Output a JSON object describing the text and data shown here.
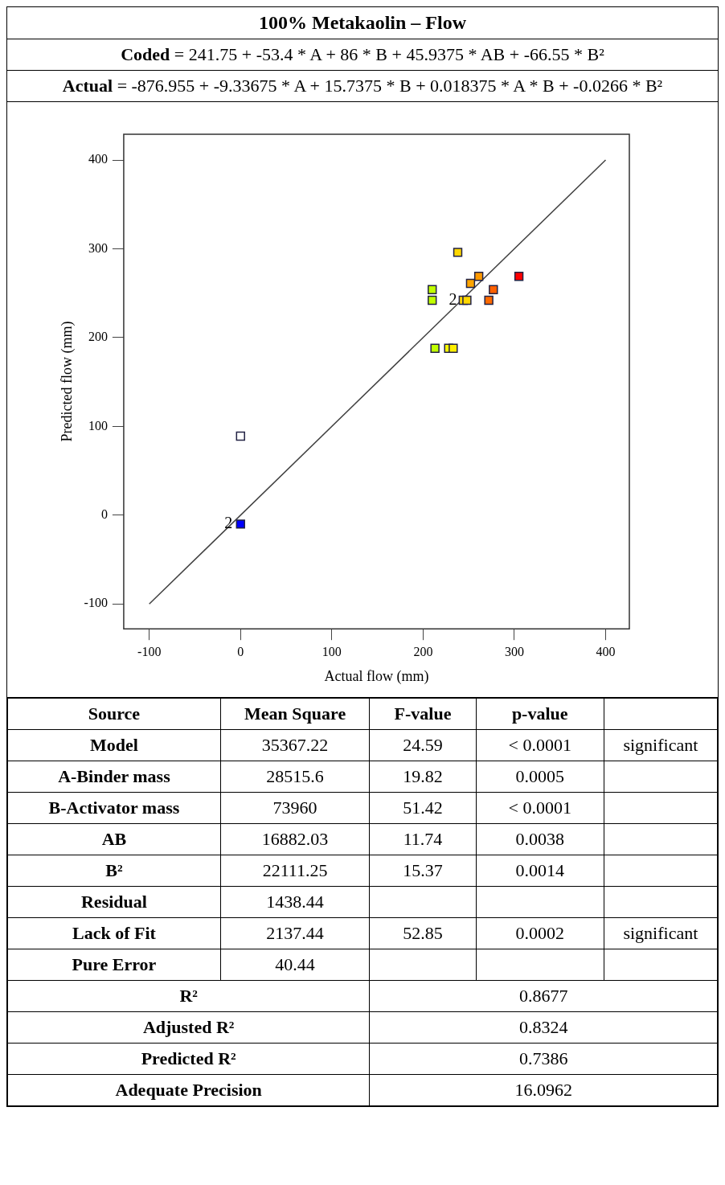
{
  "chart_data": {
    "type": "scatter",
    "title": "100% Metakaolin – Flow",
    "subtitle": "Coded = 241.75 + -53.4 * A + 86 * B + 45.9375 * AB + -66.55 * B²",
    "xlabel": "Actual flow (mm)",
    "ylabel": "Predicted flow (mm)",
    "xlim": [
      -128,
      426
    ],
    "ylim": [
      -128,
      429
    ],
    "xticks": [
      -100,
      0,
      100,
      200,
      300,
      400
    ],
    "yticks": [
      -100,
      0,
      100,
      200,
      300,
      400
    ],
    "grid": false,
    "legend": false,
    "marker": "square",
    "series": [
      {
        "x": [
          0,
          0,
          238,
          261,
          252,
          210,
          210,
          244,
          248,
          277,
          272,
          305,
          213,
          228,
          233
        ],
        "values": [
          89,
          -10,
          296,
          269,
          261,
          254,
          242,
          242,
          242,
          254,
          242,
          269,
          188,
          188,
          188
        ],
        "color": "#ff9900",
        "colors": [
          "#ffffff",
          "#0000ff",
          "#ffd700",
          "#ff9900",
          "#ffa500",
          "#c0ff00",
          "#c0ff00",
          "#ffd700",
          "#ffd700",
          "#ff6000",
          "#ff6a00",
          "#ff0000",
          "#c0ff00",
          "#ffff00",
          "#ffee00"
        ]
      },
      {
        "type": "line",
        "x": [
          -100,
          400
        ],
        "values": [
          -100,
          400
        ],
        "color": "#404040",
        "marker": "none"
      }
    ],
    "annotations": [
      "Actual = -876.955 + -9.33675 * A + 15.7375 * B + 0.018375 * A * B + -0.0266 * B²",
      "Source",
      "Mean Square",
      "F-value",
      "p-value",
      "Model",
      "35367.22",
      "24.59",
      "< 0.0001",
      "significant",
      "A-Binder mass",
      "28515.6",
      "19.82",
      "0.0005",
      "B-Activator mass",
      "73960",
      "51.42",
      "< 0.0001",
      "AB",
      "16882.03",
      "11.74",
      "0.0038",
      "B²",
      "22111.25",
      "15.37",
      "0.0014",
      "Residual",
      "1438.44",
      "Lack of Fit",
      "2137.44",
      "52.85",
      "0.0002",
      "significant",
      "Pure Error",
      "40.44",
      "R²",
      "0.8677",
      "Adjusted R²",
      "0.8324",
      "Predicted R²",
      "0.7386",
      "Adequate Precision",
      "16.0962",
      {
        "text": "2",
        "x": 0,
        "y": -10
      },
      {
        "text": "2",
        "x": 246,
        "y": 242
      }
    ]
  }
}
